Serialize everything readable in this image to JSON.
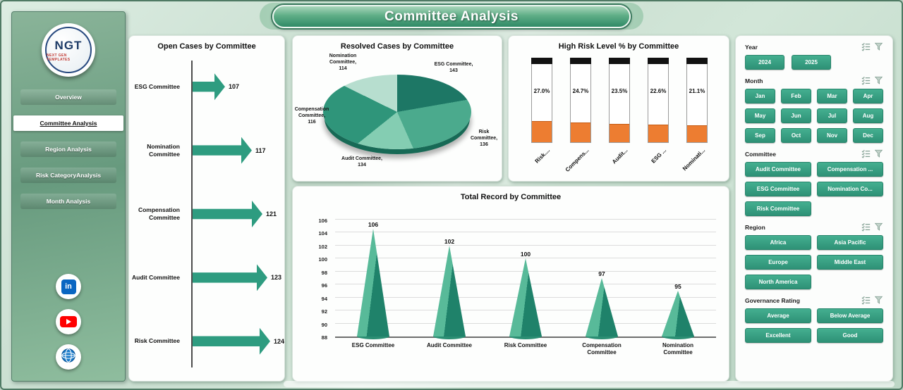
{
  "header": {
    "title": "Committee Analysis"
  },
  "sidebar": {
    "logo": {
      "text": "NGT",
      "subtext": "NEXT GEN TEMPLATES"
    },
    "items": [
      {
        "label": "Overview"
      },
      {
        "label": "Committee Analysis"
      },
      {
        "label": "Region Analysis"
      },
      {
        "label": "Risk CategoryAnalysis"
      },
      {
        "label": "Month Analysis"
      }
    ],
    "social": [
      {
        "name": "LinkedIn",
        "glyph": "in"
      },
      {
        "name": "YouTube"
      },
      {
        "name": "Website"
      }
    ]
  },
  "chart_data": [
    {
      "type": "bar",
      "name": "open_cases",
      "title": "Open Cases by Committee",
      "orientation": "horizontal",
      "categories": [
        "ESG Committee",
        "Nomination Committee",
        "Compensation Committee",
        "Audit Committee",
        "Risk Committee"
      ],
      "values": [
        107,
        117,
        121,
        123,
        124
      ],
      "axis_min": 95,
      "bar_color": "#2E9C80"
    },
    {
      "type": "pie",
      "name": "resolved_cases",
      "title": "Resolved Cases by Committee",
      "slices": [
        {
          "label": "ESG Committee",
          "label_display": "ESG Committee,",
          "value": 143,
          "color": "#1D7765"
        },
        {
          "label": "Risk Committee",
          "label_display": "Risk Committee,",
          "value": 136,
          "color": "#4BAA8D"
        },
        {
          "label": "Audit Committee",
          "label_display": "Audit Committee,",
          "value": 134,
          "color": "#84CDB2"
        },
        {
          "label": "Compensation Committee",
          "label_display": "Compensation Committee,",
          "value": 116,
          "color": "#2F957A"
        },
        {
          "label": "Nomination Committee",
          "label_display": "Nomination Committee,",
          "value": 114,
          "color": "#B7DECF"
        }
      ]
    },
    {
      "type": "bar",
      "name": "high_risk_level_pct",
      "title": "High Risk Level % by Committee",
      "categories": [
        "Risk....",
        "Compens...",
        "Audit...",
        "ESG ...",
        "Nominati..."
      ],
      "values": [
        27.0,
        24.7,
        23.5,
        22.6,
        21.1
      ],
      "value_labels": [
        "27.0%",
        "24.7%",
        "23.5%",
        "22.6%",
        "21.1%"
      ],
      "ylim": [
        0,
        100
      ],
      "fill_color": "#ED7D31"
    },
    {
      "type": "bar",
      "name": "total_record",
      "title": "Total Record by Committee",
      "categories": [
        "ESG Committee",
        "Audit Committee",
        "Risk Committee",
        "Compensation Committee",
        "Nomination Committee"
      ],
      "values": [
        106,
        102,
        100,
        97,
        95
      ],
      "ylim": [
        88,
        106
      ],
      "ytick_step": 2,
      "cone_colors": [
        "#58BA99",
        "#1F826A"
      ]
    }
  ],
  "slicers": [
    {
      "title": "Year",
      "options": [
        "2024",
        "2025"
      ]
    },
    {
      "title": "Month",
      "options": [
        "Jan",
        "Feb",
        "Mar",
        "Apr",
        "May",
        "Jun",
        "Jul",
        "Aug",
        "Sep",
        "Oct",
        "Nov",
        "Dec"
      ]
    },
    {
      "title": "Committee",
      "options": [
        "Audit Committee",
        "Compensation ...",
        "ESG Committee",
        "Nomination Co...",
        "Risk Committee"
      ]
    },
    {
      "title": "Region",
      "options": [
        "Africa",
        "Asia Pacific",
        "Europe",
        "Middle East",
        "North America"
      ]
    },
    {
      "title": "Governance Rating",
      "options": [
        "Average",
        "Below Average",
        "Excellent",
        "Good"
      ]
    }
  ]
}
